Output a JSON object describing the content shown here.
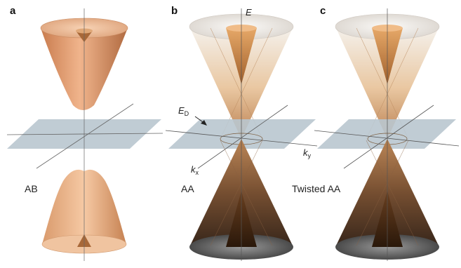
{
  "panels": [
    {
      "letter": "a",
      "label": "AB"
    },
    {
      "letter": "b",
      "label": "AA"
    },
    {
      "letter": "c",
      "label": "Twisted AA"
    }
  ],
  "axes": {
    "energy": "E",
    "dirac_main": "E",
    "dirac_sub": "D",
    "kx_main": "k",
    "kx_sub": "x",
    "ky_main": "k",
    "ky_sub": "y"
  },
  "colors": {
    "band_orange": "#e8a070",
    "band_dark": "#3a2414",
    "plane": "#b9c6cf",
    "axis_line": "#555555"
  }
}
